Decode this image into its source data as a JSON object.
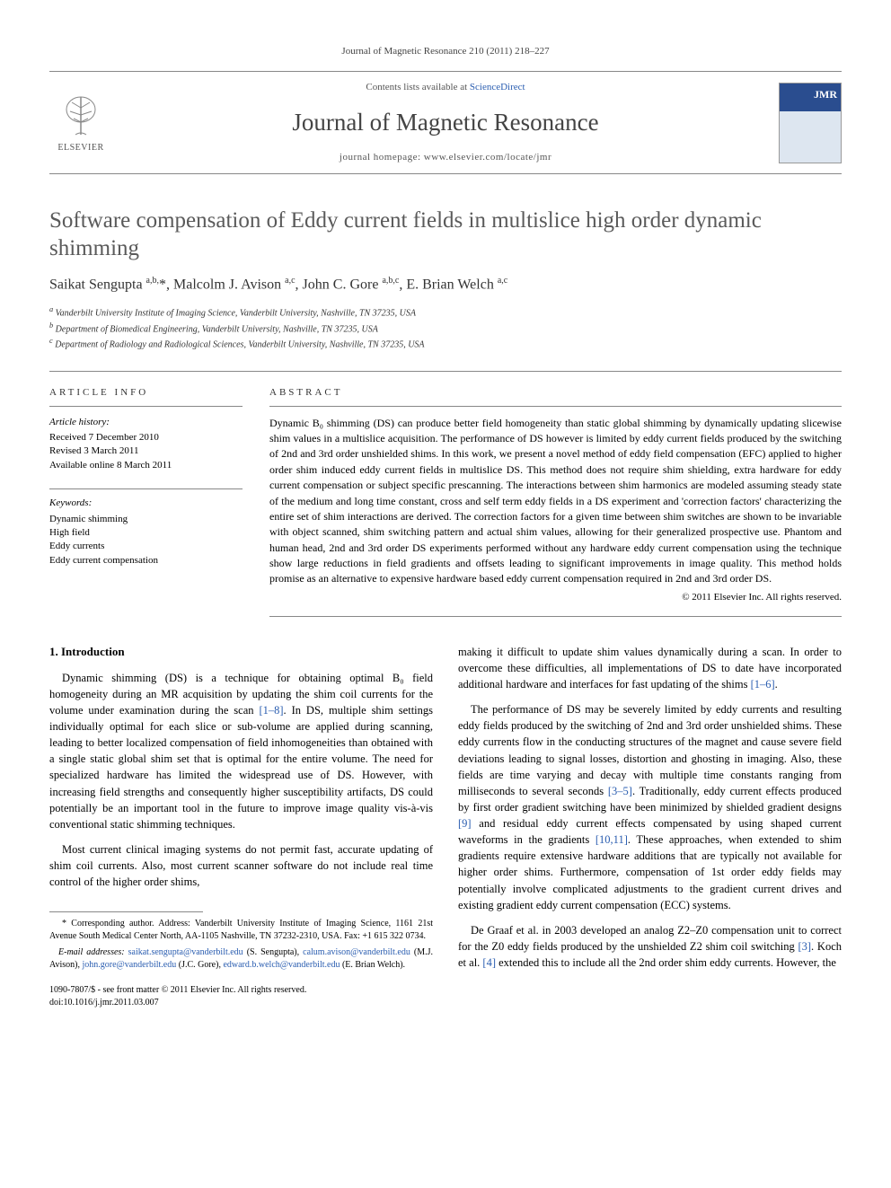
{
  "citation": "Journal of Magnetic Resonance 210 (2011) 218–227",
  "masthead": {
    "contents_prefix": "Contents lists available at ",
    "contents_link": "ScienceDirect",
    "journal": "Journal of Magnetic Resonance",
    "homepage": "journal homepage: www.elsevier.com/locate/jmr",
    "publisher": "ELSEVIER",
    "cover_label": "JMR"
  },
  "title": "Software compensation of Eddy current fields in multislice high order dynamic shimming",
  "authors_html": "Saikat Sengupta <sup>a,b,</sup>*, Malcolm J. Avison <sup>a,c</sup>, John C. Gore <sup>a,b,c</sup>, E. Brian Welch <sup>a,c</sup>",
  "affiliations": [
    "Vanderbilt University Institute of Imaging Science, Vanderbilt University, Nashville, TN 37235, USA",
    "Department of Biomedical Engineering, Vanderbilt University, Nashville, TN 37235, USA",
    "Department of Radiology and Radiological Sciences, Vanderbilt University, Nashville, TN 37235, USA"
  ],
  "aff_markers": [
    "a",
    "b",
    "c"
  ],
  "info": {
    "heading": "ARTICLE INFO",
    "history_label": "Article history:",
    "history": [
      "Received 7 December 2010",
      "Revised 3 March 2011",
      "Available online 8 March 2011"
    ],
    "keywords_label": "Keywords:",
    "keywords": [
      "Dynamic shimming",
      "High field",
      "Eddy currents",
      "Eddy current compensation"
    ]
  },
  "abstract": {
    "heading": "ABSTRACT",
    "text": "Dynamic B₀ shimming (DS) can produce better field homogeneity than static global shimming by dynamically updating slicewise shim values in a multislice acquisition. The performance of DS however is limited by eddy current fields produced by the switching of 2nd and 3rd order unshielded shims. In this work, we present a novel method of eddy field compensation (EFC) applied to higher order shim induced eddy current fields in multislice DS. This method does not require shim shielding, extra hardware for eddy current compensation or subject specific prescanning. The interactions between shim harmonics are modeled assuming steady state of the medium and long time constant, cross and self term eddy fields in a DS experiment and 'correction factors' characterizing the entire set of shim interactions are derived. The correction factors for a given time between shim switches are shown to be invariable with object scanned, shim switching pattern and actual shim values, allowing for their generalized prospective use. Phantom and human head, 2nd and 3rd order DS experiments performed without any hardware eddy current compensation using the technique show large reductions in field gradients and offsets leading to significant improvements in image quality. This method holds promise as an alternative to expensive hardware based eddy current compensation required in 2nd and 3rd order DS.",
    "copyright": "© 2011 Elsevier Inc. All rights reserved."
  },
  "section1": {
    "heading": "1. Introduction",
    "p1_a": "Dynamic shimming (DS) is a technique for obtaining optimal B₀ field homogeneity during an MR acquisition by updating the shim coil currents for the volume under examination during the scan ",
    "p1_ref1": "[1–8]",
    "p1_b": ". In DS, multiple shim settings individually optimal for each slice or sub-volume are applied during scanning, leading to better localized compensation of field inhomogeneities than obtained with a single static global shim set that is optimal for the entire volume. The need for specialized hardware has limited the widespread use of DS. However, with increasing field strengths and consequently higher susceptibility artifacts, DS could potentially be an important tool in the future to improve image quality vis-à-vis conventional static shimming techniques.",
    "p2": "Most current clinical imaging systems do not permit fast, accurate updating of shim coil currents. Also, most current scanner software do not include real time control of the higher order shims,",
    "p3_a": "making it difficult to update shim values dynamically during a scan. In order to overcome these difficulties, all implementations of DS to date have incorporated additional hardware and interfaces for fast updating of the shims ",
    "p3_ref": "[1–6]",
    "p3_b": ".",
    "p4_a": "The performance of DS may be severely limited by eddy currents and resulting eddy fields produced by the switching of 2nd and 3rd order unshielded shims. These eddy currents flow in the conducting structures of the magnet and cause severe field deviations leading to signal losses, distortion and ghosting in imaging. Also, these fields are time varying and decay with multiple time constants ranging from milliseconds to several seconds ",
    "p4_ref1": "[3–5]",
    "p4_b": ". Traditionally, eddy current effects produced by first order gradient switching have been minimized by shielded gradient designs ",
    "p4_ref2": "[9]",
    "p4_c": " and residual eddy current effects compensated by using shaped current waveforms in the gradients ",
    "p4_ref3": "[10,11]",
    "p4_d": ". These approaches, when extended to shim gradients require extensive hardware additions that are typically not available for higher order shims. Furthermore, compensation of 1st order eddy fields may potentially involve complicated adjustments to the gradient current drives and existing gradient eddy current compensation (ECC) systems.",
    "p5_a": "De Graaf et al. in 2003 developed an analog Z2–Z0 compensation unit to correct for the Z0 eddy fields produced by the unshielded Z2 shim coil switching ",
    "p5_ref1": "[3]",
    "p5_b": ". Koch et al. ",
    "p5_ref2": "[4]",
    "p5_c": " extended this to include all the 2nd order shim eddy currents. However, the"
  },
  "footnotes": {
    "corr": "* Corresponding author. Address: Vanderbilt University Institute of Imaging Science, 1161 21st Avenue South Medical Center North, AA-1105 Nashville, TN 37232-2310, USA. Fax: +1 615 322 0734.",
    "emails_label": "E-mail addresses:",
    "e1": "saikat.sengupta@vanderbilt.edu",
    "e1_who": " (S. Sengupta), ",
    "e2": "calum.avison@vanderbilt.edu",
    "e2_who": " (M.J. Avison), ",
    "e3": "john.gore@vanderbilt.edu",
    "e3_who": " (J.C. Gore), ",
    "e4": "edward.b.welch@vanderbilt.edu",
    "e4_who": " (E. Brian Welch)."
  },
  "doi": {
    "line1": "1090-7807/$ - see front matter © 2011 Elsevier Inc. All rights reserved.",
    "line2": "doi:10.1016/j.jmr.2011.03.007"
  },
  "colors": {
    "link": "#2a5db0",
    "rule": "#888888",
    "title_gray": "#5a5a5a"
  }
}
